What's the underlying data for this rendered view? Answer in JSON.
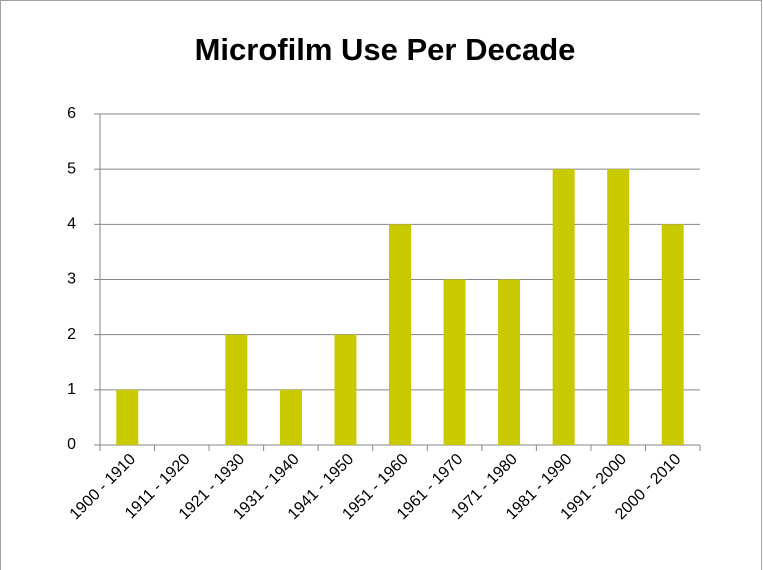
{
  "chart_data": {
    "type": "bar",
    "title": "Microfilm Use Per Decade",
    "categories": [
      "1900 - 1910",
      "1911 - 1920",
      "1921 - 1930",
      "1931 - 1940",
      "1941 - 1950",
      "1951 - 1960",
      "1961 - 1970",
      "1971 - 1980",
      "1981 - 1990",
      "1991 - 2000",
      "2000 - 2010"
    ],
    "values": [
      1,
      0,
      2,
      1,
      2,
      4,
      3,
      3,
      5,
      5,
      4
    ],
    "color": "#c9c900",
    "ylim": [
      0,
      6
    ],
    "yticks": [
      0,
      1,
      2,
      3,
      4,
      5,
      6
    ],
    "grid": true
  }
}
